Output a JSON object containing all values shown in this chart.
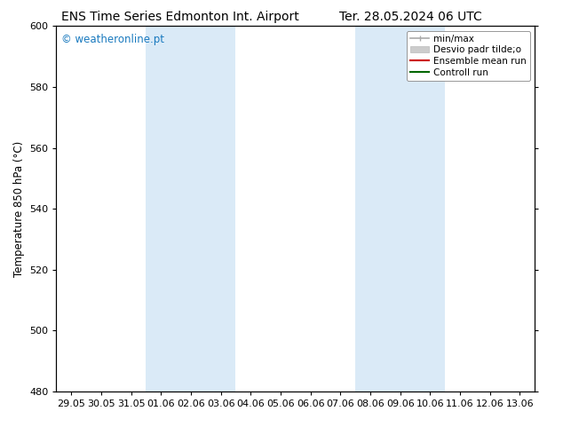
{
  "title_left": "ENS Time Series Edmonton Int. Airport",
  "title_right": "Ter. 28.05.2024 06 UTC",
  "ylabel": "Temperature 850 hPa (°C)",
  "watermark": "© weatheronline.pt",
  "watermark_color": "#1a7abf",
  "xlim_dates": [
    "29.05",
    "30.05",
    "31.05",
    "01.06",
    "02.06",
    "03.06",
    "04.06",
    "05.06",
    "06.06",
    "07.06",
    "08.06",
    "09.06",
    "10.06",
    "11.06",
    "12.06",
    "13.06"
  ],
  "ylim": [
    480,
    600
  ],
  "yticks": [
    480,
    500,
    520,
    540,
    560,
    580,
    600
  ],
  "shaded_regions": [
    {
      "xstart": 3,
      "xend": 5
    },
    {
      "xstart": 10,
      "xend": 12
    }
  ],
  "shaded_color": "#daeaf7",
  "legend_entries": [
    {
      "label": "min/max",
      "color": "#aaaaaa",
      "lw": 1.2,
      "style": "solid"
    },
    {
      "label": "Desvio padr tilde;o",
      "color": "#cccccc",
      "lw": 6,
      "style": "solid"
    },
    {
      "label": "Ensemble mean run",
      "color": "#cc0000",
      "lw": 1.5,
      "style": "solid"
    },
    {
      "label": "Controll run",
      "color": "#006600",
      "lw": 1.5,
      "style": "solid"
    }
  ],
  "bg_color": "#ffffff",
  "title_fontsize": 10,
  "tick_fontsize": 8,
  "ylabel_fontsize": 8.5,
  "watermark_fontsize": 8.5,
  "legend_fontsize": 7.5
}
